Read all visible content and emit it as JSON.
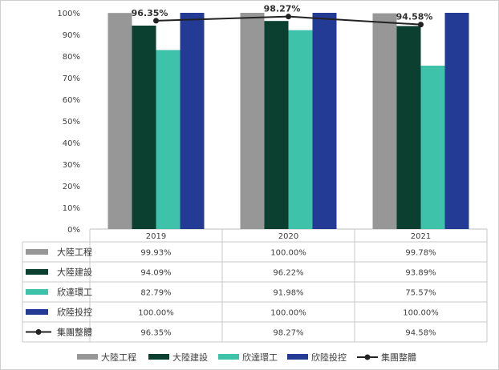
{
  "chart_data": {
    "type": "bar",
    "title": "",
    "xlabel": "",
    "ylabel": "",
    "ylim": [
      0,
      100
    ],
    "y_ticks": [
      "0%",
      "10%",
      "20%",
      "30%",
      "40%",
      "50%",
      "60%",
      "70%",
      "80%",
      "90%",
      "100%"
    ],
    "categories": [
      "2019",
      "2020",
      "2021"
    ],
    "series": [
      {
        "name": "大陸工程",
        "kind": "bar",
        "color": "#979797",
        "values": [
          99.93,
          100.0,
          99.78
        ],
        "labels": [
          "99.93%",
          "100.00%",
          "99.78%"
        ]
      },
      {
        "name": "大陸建設",
        "kind": "bar",
        "color": "#0b3f30",
        "values": [
          94.09,
          96.22,
          93.89
        ],
        "labels": [
          "94.09%",
          "96.22%",
          "93.89%"
        ]
      },
      {
        "name": "欣達環工",
        "kind": "bar",
        "color": "#3fc2aa",
        "values": [
          82.79,
          91.98,
          75.57
        ],
        "labels": [
          "82.79%",
          "91.98%",
          "75.57%"
        ]
      },
      {
        "name": "欣陸投控",
        "kind": "bar",
        "color": "#233b94",
        "values": [
          100.0,
          100.0,
          100.0
        ],
        "labels": [
          "100.00%",
          "100.00%",
          "100.00%"
        ]
      },
      {
        "name": "集團整體",
        "kind": "line",
        "color": "#222222",
        "values": [
          96.35,
          98.27,
          94.58
        ],
        "labels": [
          "96.35%",
          "98.27%",
          "94.58%"
        ]
      }
    ],
    "data_table": true,
    "grid": false,
    "legend_position": "bottom"
  }
}
